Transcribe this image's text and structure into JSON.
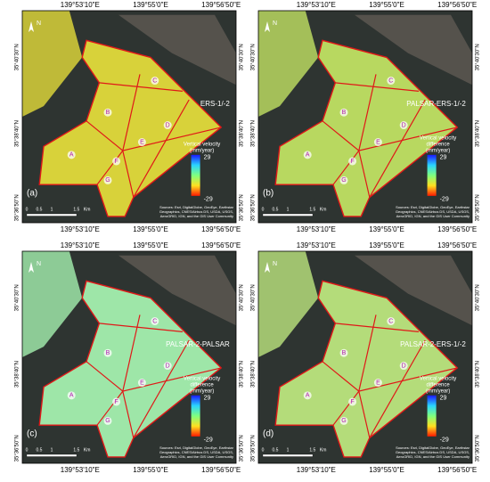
{
  "coordinates": {
    "longitude": [
      "139°53'10\"E",
      "139°55'0\"E",
      "139°56'50\"E"
    ],
    "latitude": [
      "35°40'30\"N",
      "35°38'40\"N",
      "35°36'50\"N"
    ]
  },
  "north_arrow": "N",
  "scale_bar": {
    "ticks": [
      0,
      0.5,
      1,
      1.5
    ],
    "unit": "Km"
  },
  "attribution": [
    "Sources: Esri, DigitalGlobe, GeoEye, Earthstar",
    "Geographics, CNES/Airbus DS, USDA, USGS,",
    "AeroGRID, IGN, and the GIS User Community"
  ],
  "panels": [
    {
      "label": "(a)",
      "title": "ERS-1/-2",
      "legend": {
        "title": [
          "Vertical velocity",
          "(mm/year)"
        ],
        "max": 29,
        "min": -29
      },
      "zones": [
        "A",
        "B",
        "C",
        "D",
        "E",
        "F",
        "G"
      ]
    },
    {
      "label": "(b)",
      "title": "PALSAR-ERS-1/-2",
      "legend": {
        "title": [
          "Vertical velocity",
          "difference",
          "(mm/year)"
        ],
        "max": 29,
        "min": -29
      },
      "zones": [
        "A",
        "B",
        "C",
        "D",
        "E",
        "F",
        "G"
      ]
    },
    {
      "label": "(c)",
      "title": "PALSAR-2-PALSAR",
      "legend": {
        "title": [
          "Vertical velocity",
          "difference",
          "(mm/year)"
        ],
        "max": 29,
        "min": -29
      },
      "zones": [
        "A",
        "B",
        "C",
        "D",
        "E",
        "F",
        "G"
      ]
    },
    {
      "label": "(d)",
      "title": "PALSAR-2-ERS-1/-2",
      "legend": {
        "title": [
          "Vertical velocity",
          "difference",
          "(mm/year)"
        ],
        "max": 29,
        "min": -29
      },
      "zones": [
        "A",
        "B",
        "C",
        "D",
        "E",
        "F",
        "G"
      ]
    }
  ]
}
